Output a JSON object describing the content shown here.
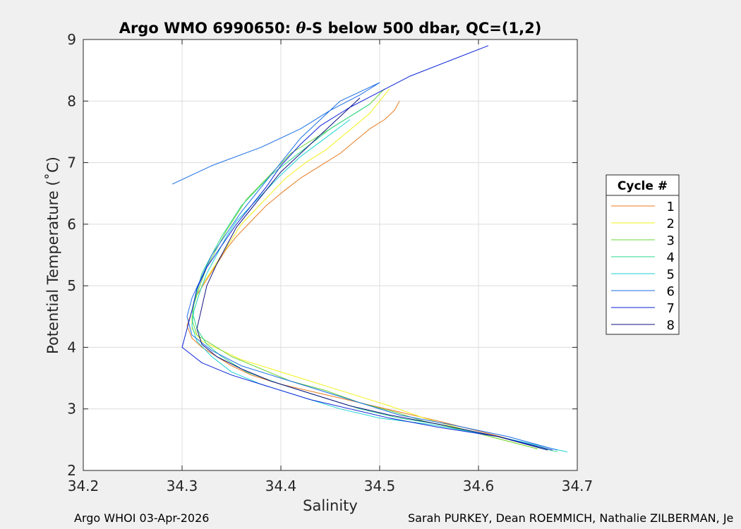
{
  "chart_data": {
    "type": "line",
    "title_prefix": "Argo WMO 6990650: ",
    "title_theta": "θ",
    "title_suffix": "-S below 500 dbar,  QC=(1,2)",
    "xlabel": "Salinity",
    "ylabel": "Potential Temperature (˚C)",
    "xlim": [
      34.2,
      34.7
    ],
    "ylim": [
      2,
      9
    ],
    "xticks": [
      "34.2",
      "34.3",
      "34.4",
      "34.5",
      "34.6",
      "34.7"
    ],
    "yticks": [
      "2",
      "3",
      "4",
      "5",
      "6",
      "7",
      "8",
      "9"
    ],
    "grid": true,
    "legend_title": "Cycle #",
    "legend_position": "right",
    "series": [
      {
        "name": "1",
        "color": "#e87a1e",
        "x": [
          34.52,
          34.515,
          34.505,
          34.49,
          34.475,
          34.46,
          34.44,
          34.42,
          34.4,
          34.385,
          34.37,
          34.355,
          34.345,
          34.335,
          34.325,
          34.315,
          34.31,
          34.305,
          34.31,
          34.32,
          34.335,
          34.35,
          34.37,
          34.4,
          34.44,
          34.48,
          34.52,
          34.56,
          34.61,
          34.67
        ],
        "y": [
          8.0,
          7.85,
          7.7,
          7.55,
          7.35,
          7.15,
          6.95,
          6.75,
          6.5,
          6.3,
          6.05,
          5.8,
          5.6,
          5.35,
          5.1,
          4.85,
          4.6,
          4.35,
          4.15,
          4.0,
          3.85,
          3.7,
          3.55,
          3.4,
          3.25,
          3.1,
          2.95,
          2.8,
          2.6,
          2.35
        ]
      },
      {
        "name": "2",
        "color": "#f2f21a",
        "x": [
          34.51,
          34.5,
          34.49,
          34.475,
          34.46,
          34.445,
          34.425,
          34.405,
          34.39,
          34.375,
          34.36,
          34.35,
          34.34,
          34.33,
          34.32,
          34.315,
          34.31,
          34.31,
          34.32,
          34.34,
          34.36,
          34.39,
          34.42,
          34.45,
          34.48,
          34.51,
          34.545,
          34.6,
          34.66
        ],
        "y": [
          8.2,
          8.0,
          7.8,
          7.6,
          7.4,
          7.2,
          7.0,
          6.75,
          6.5,
          6.25,
          6.0,
          5.75,
          5.5,
          5.25,
          5.0,
          4.75,
          4.5,
          4.3,
          4.1,
          3.95,
          3.8,
          3.65,
          3.5,
          3.35,
          3.2,
          3.05,
          2.85,
          2.6,
          2.35
        ]
      },
      {
        "name": "3",
        "color": "#6ad43a",
        "x": [
          34.505,
          34.49,
          34.47,
          34.45,
          34.43,
          34.41,
          34.395,
          34.38,
          34.365,
          34.355,
          34.345,
          34.335,
          34.325,
          34.318,
          34.312,
          34.31,
          34.315,
          34.33,
          34.35,
          34.38,
          34.41,
          34.445,
          34.48,
          34.515,
          34.545,
          34.6,
          34.66
        ],
        "y": [
          8.2,
          7.95,
          7.75,
          7.55,
          7.35,
          7.15,
          6.9,
          6.65,
          6.4,
          6.15,
          5.9,
          5.6,
          5.3,
          5.0,
          4.7,
          4.45,
          4.2,
          4.05,
          3.85,
          3.65,
          3.45,
          3.3,
          3.1,
          2.95,
          2.8,
          2.6,
          2.35
        ]
      },
      {
        "name": "4",
        "color": "#2ed68e",
        "x": [
          34.49,
          34.47,
          34.45,
          34.43,
          34.41,
          34.39,
          34.375,
          34.36,
          34.35,
          34.34,
          34.33,
          34.32,
          34.315,
          34.31,
          34.315,
          34.325,
          34.34,
          34.365,
          34.4,
          34.44,
          34.48,
          34.52,
          34.56,
          34.62,
          34.68
        ],
        "y": [
          7.95,
          7.75,
          7.55,
          7.3,
          7.05,
          6.8,
          6.55,
          6.3,
          6.05,
          5.8,
          5.5,
          5.2,
          4.9,
          4.6,
          4.3,
          4.05,
          3.85,
          3.6,
          3.4,
          3.2,
          3.0,
          2.85,
          2.75,
          2.55,
          2.3
        ]
      },
      {
        "name": "5",
        "color": "#1ed2d2",
        "x": [
          34.47,
          34.445,
          34.42,
          34.4,
          34.385,
          34.37,
          34.355,
          34.345,
          34.335,
          34.325,
          34.318,
          34.312,
          34.31,
          34.315,
          34.33,
          34.35,
          34.38,
          34.42,
          34.46,
          34.5,
          34.55,
          34.62,
          34.69
        ],
        "y": [
          7.7,
          7.4,
          7.1,
          6.8,
          6.55,
          6.3,
          6.05,
          5.8,
          5.5,
          5.2,
          4.9,
          4.6,
          4.35,
          4.1,
          3.85,
          3.6,
          3.4,
          3.2,
          3.0,
          2.85,
          2.75,
          2.55,
          2.3
        ]
      },
      {
        "name": "6",
        "color": "#1a6ee6",
        "x": [
          34.29,
          34.33,
          34.38,
          34.42,
          34.45,
          34.48,
          34.5,
          34.46,
          34.42,
          34.395,
          34.375,
          34.36,
          34.345,
          34.33,
          34.32,
          34.31,
          34.305,
          34.31,
          34.33,
          34.36,
          34.4,
          34.44,
          34.48,
          34.52,
          34.57,
          34.63,
          34.68
        ],
        "y": [
          6.65,
          6.95,
          7.25,
          7.55,
          7.85,
          8.1,
          8.3,
          8.0,
          7.4,
          6.9,
          6.5,
          6.2,
          5.85,
          5.5,
          5.15,
          4.8,
          4.5,
          4.2,
          3.95,
          3.7,
          3.5,
          3.3,
          3.1,
          2.9,
          2.75,
          2.55,
          2.33
        ]
      },
      {
        "name": "7",
        "color": "#0a22d8",
        "x": [
          34.61,
          34.57,
          34.53,
          34.5,
          34.47,
          34.44,
          34.42,
          34.4,
          34.385,
          34.37,
          34.355,
          34.34,
          34.325,
          34.315,
          34.31,
          34.305,
          34.3,
          34.32,
          34.35,
          34.39,
          34.43,
          34.47,
          34.51,
          34.56,
          34.62,
          34.675
        ],
        "y": [
          8.9,
          8.65,
          8.4,
          8.15,
          7.9,
          7.6,
          7.3,
          6.95,
          6.6,
          6.3,
          6.0,
          5.65,
          5.3,
          4.95,
          4.6,
          4.3,
          4.0,
          3.75,
          3.55,
          3.35,
          3.15,
          3.0,
          2.85,
          2.7,
          2.55,
          2.33
        ]
      },
      {
        "name": "8",
        "color": "#101080",
        "x": [
          34.48,
          34.46,
          34.44,
          34.42,
          34.4,
          34.385,
          34.37,
          34.355,
          34.345,
          34.335,
          34.325,
          34.32,
          34.315,
          34.32,
          34.335,
          34.36,
          34.39,
          34.43,
          34.47,
          34.51,
          34.56,
          34.62,
          34.67
        ],
        "y": [
          8.05,
          7.75,
          7.45,
          7.15,
          6.85,
          6.55,
          6.25,
          5.95,
          5.65,
          5.35,
          5.0,
          4.65,
          4.3,
          4.05,
          3.85,
          3.65,
          3.45,
          3.25,
          3.05,
          2.9,
          2.75,
          2.55,
          2.33
        ]
      }
    ]
  },
  "footer": {
    "left": "Argo WHOI 03-Apr-2026",
    "right": "Sarah PURKEY, Dean ROEMMICH, Nathalie ZILBERMAN, Je"
  }
}
